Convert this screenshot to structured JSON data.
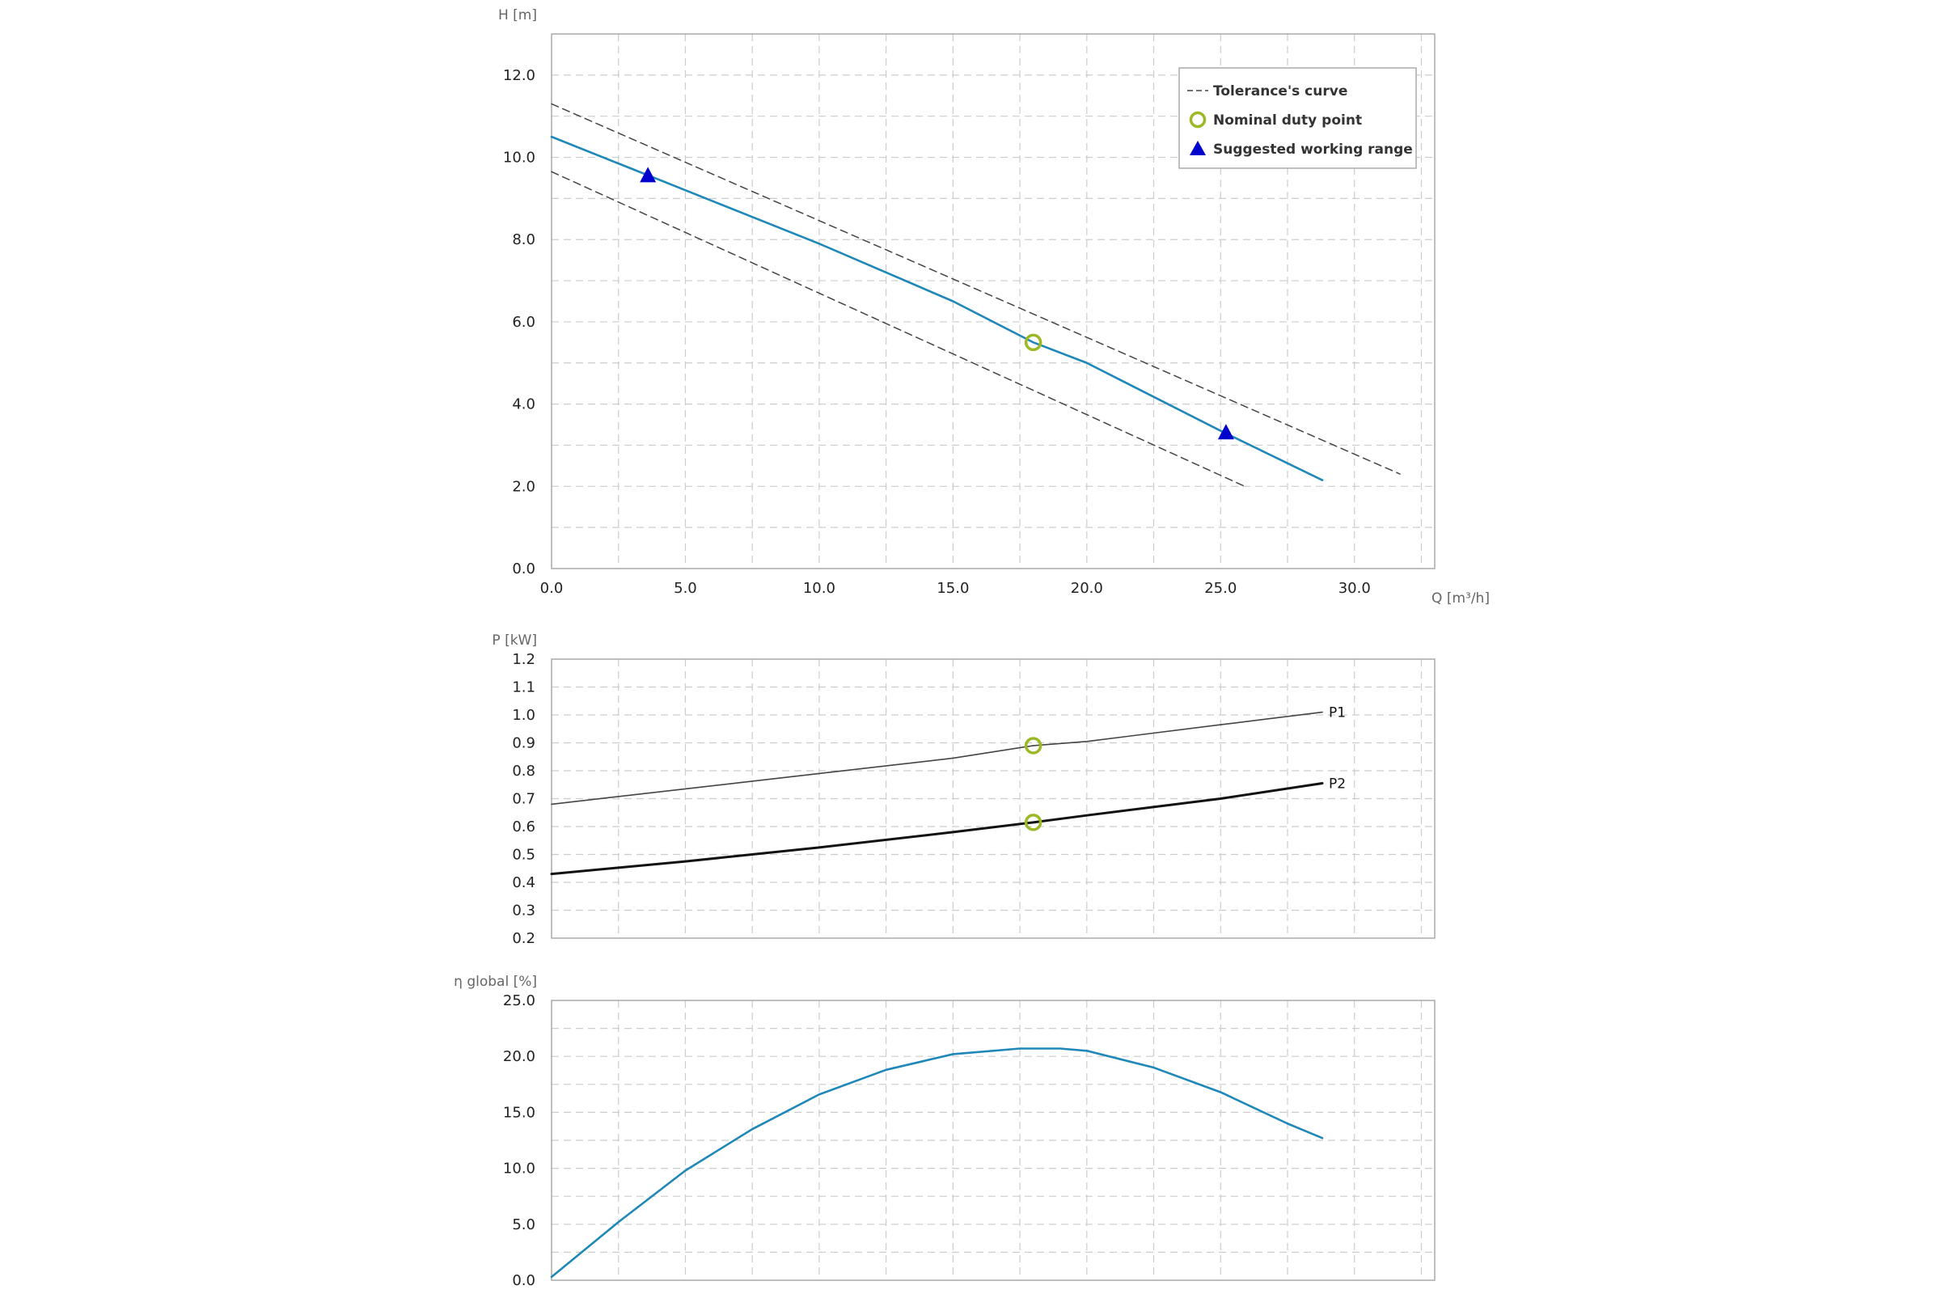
{
  "colors": {
    "curve": "#1f88b8",
    "tolerance": "#444444",
    "duty_point": "#9ab924",
    "working_range": "#0000cc",
    "grid": "#cccccc",
    "frame": "#aaaaaa"
  },
  "chart_data": [
    {
      "id": "head",
      "type": "line",
      "ylabel": "H [m]",
      "xlabel": "Q [m³/h]",
      "xlim": [
        0,
        33
      ],
      "ylim": [
        0,
        13
      ],
      "xticks": [
        0,
        5,
        10,
        15,
        20,
        25,
        30
      ],
      "xtick_labels": [
        "0.0",
        "5.0",
        "10.0",
        "15.0",
        "20.0",
        "25.0",
        "30.0"
      ],
      "yticks": [
        0,
        2,
        4,
        6,
        8,
        10,
        12
      ],
      "ytick_labels": [
        "0.0",
        "2.0",
        "4.0",
        "6.0",
        "8.0",
        "10.0",
        "12.0"
      ],
      "grid": true,
      "legend": {
        "position": "top-right",
        "entries": [
          {
            "label": "Tolerance's curve",
            "symbol": "dashed-line"
          },
          {
            "label": "Nominal duty point",
            "symbol": "open-circle"
          },
          {
            "label": "Suggested working range",
            "symbol": "triangle"
          }
        ]
      },
      "series": [
        {
          "role": "pump-curve",
          "x": [
            0,
            5,
            10,
            15,
            18,
            20,
            25,
            28.8
          ],
          "y": [
            10.5,
            9.2,
            7.9,
            6.5,
            5.5,
            5.0,
            3.35,
            2.15
          ]
        },
        {
          "role": "tolerance-upper",
          "style": "dashed",
          "x": [
            0,
            31.7
          ],
          "y": [
            11.3,
            2.3
          ]
        },
        {
          "role": "tolerance-lower",
          "style": "dashed",
          "x": [
            0,
            25.9
          ],
          "y": [
            9.65,
            2.0
          ]
        }
      ],
      "points": [
        {
          "role": "duty",
          "x": 18.0,
          "y": 5.5
        },
        {
          "role": "range",
          "x": 3.6,
          "y": 9.55
        },
        {
          "role": "range",
          "x": 25.2,
          "y": 3.3
        }
      ]
    },
    {
      "id": "power",
      "type": "line",
      "ylabel": "P [kW]",
      "xlim": [
        0,
        33
      ],
      "ylim": [
        0.2,
        1.2
      ],
      "xticks": [
        0,
        5,
        10,
        15,
        20,
        25,
        30
      ],
      "yticks": [
        0.2,
        0.3,
        0.4,
        0.5,
        0.6,
        0.7,
        0.8,
        0.9,
        1.0,
        1.1,
        1.2
      ],
      "ytick_labels": [
        "0.2",
        "0.3",
        "0.4",
        "0.5",
        "0.6",
        "0.7",
        "0.8",
        "0.9",
        "1.0",
        "1.1",
        "1.2"
      ],
      "grid": true,
      "series": [
        {
          "name": "P1",
          "color": "#444444",
          "x": [
            0,
            5,
            10,
            15,
            18,
            20,
            25,
            28.8
          ],
          "y": [
            0.68,
            0.735,
            0.79,
            0.845,
            0.89,
            0.905,
            0.965,
            1.01
          ]
        },
        {
          "name": "P2",
          "color": "#111111",
          "x": [
            0,
            5,
            10,
            15,
            18,
            20,
            25,
            28.8
          ],
          "y": [
            0.43,
            0.475,
            0.525,
            0.58,
            0.615,
            0.64,
            0.7,
            0.755
          ]
        }
      ],
      "points": [
        {
          "role": "duty",
          "x": 18.0,
          "y": 0.89
        },
        {
          "role": "duty",
          "x": 18.0,
          "y": 0.615
        }
      ]
    },
    {
      "id": "efficiency",
      "type": "line",
      "ylabel": "η global [%]",
      "xlim": [
        0,
        33
      ],
      "ylim": [
        0,
        25
      ],
      "xticks": [
        0,
        5,
        10,
        15,
        20,
        25,
        30
      ],
      "yticks": [
        0,
        5,
        10,
        15,
        20,
        25
      ],
      "ytick_labels": [
        "0.0",
        "5.0",
        "10.0",
        "15.0",
        "20.0",
        "25.0"
      ],
      "grid": true,
      "series": [
        {
          "x": [
            0,
            2.5,
            5,
            7.5,
            10,
            12.5,
            15,
            17.5,
            19,
            20,
            22.5,
            25,
            27.5,
            28.8
          ],
          "y": [
            0.3,
            5.2,
            9.8,
            13.5,
            16.6,
            18.8,
            20.2,
            20.7,
            20.7,
            20.5,
            19.0,
            16.8,
            14.0,
            12.7
          ]
        }
      ]
    }
  ]
}
